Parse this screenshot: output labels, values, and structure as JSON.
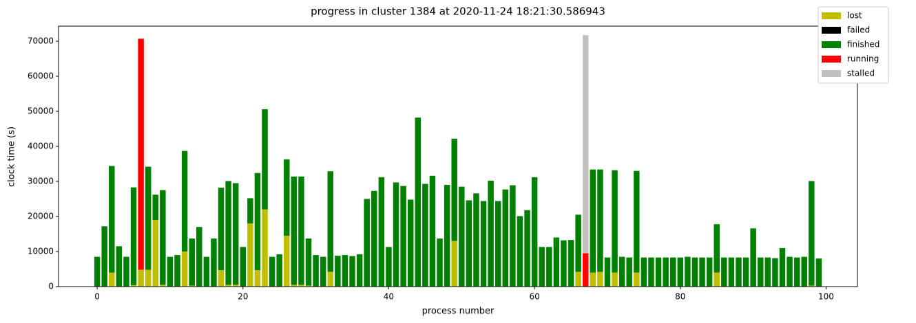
{
  "chart_data": {
    "type": "stacked_bar",
    "title": "progress in cluster 1384 at 2020-11-24 18:21:30.586943",
    "x_label": "process number",
    "y_label": "clock time (s)",
    "x": [
      0,
      1,
      2,
      3,
      4,
      5,
      6,
      7,
      8,
      9,
      10,
      11,
      12,
      13,
      14,
      15,
      16,
      17,
      18,
      19,
      20,
      21,
      22,
      23,
      24,
      25,
      26,
      27,
      28,
      29,
      30,
      31,
      32,
      33,
      34,
      35,
      36,
      37,
      38,
      39,
      40,
      41,
      42,
      43,
      44,
      45,
      46,
      47,
      48,
      49,
      50,
      51,
      52,
      53,
      54,
      55,
      56,
      57,
      58,
      59,
      60,
      61,
      62,
      63,
      64,
      65,
      66,
      67,
      68,
      69,
      70,
      71,
      72,
      73,
      74,
      75,
      76,
      77,
      78,
      79,
      80,
      81,
      82,
      83,
      84,
      85,
      86,
      87,
      88,
      89,
      90,
      91,
      92,
      93,
      94,
      95,
      96,
      97,
      98,
      99
    ],
    "series": [
      {
        "name": "lost",
        "color": "#bfbf00",
        "values": [
          0,
          0,
          4000,
          0,
          0,
          400,
          4800,
          4800,
          19000,
          500,
          0,
          0,
          10000,
          300,
          0,
          0,
          0,
          4700,
          500,
          500,
          0,
          18000,
          4700,
          22000,
          0,
          0,
          14500,
          500,
          500,
          300,
          0,
          0,
          4200,
          0,
          0,
          0,
          0,
          0,
          0,
          0,
          0,
          0,
          0,
          0,
          0,
          0,
          0,
          0,
          0,
          13000,
          0,
          0,
          0,
          0,
          0,
          0,
          0,
          0,
          0,
          0,
          0,
          0,
          0,
          0,
          0,
          0,
          4200,
          0,
          4000,
          4200,
          0,
          4000,
          0,
          0,
          4000,
          0,
          0,
          0,
          0,
          0,
          0,
          0,
          0,
          0,
          0,
          4000,
          0,
          0,
          0,
          0,
          0,
          0,
          0,
          0,
          0,
          0,
          0,
          0,
          300,
          0
        ]
      },
      {
        "name": "failed",
        "color": "#000000",
        "values": [
          0,
          0,
          0,
          0,
          0,
          0,
          0,
          0,
          0,
          0,
          0,
          0,
          0,
          0,
          0,
          0,
          0,
          0,
          0,
          0,
          0,
          0,
          0,
          0,
          0,
          0,
          0,
          0,
          0,
          0,
          0,
          0,
          0,
          0,
          0,
          0,
          0,
          0,
          0,
          0,
          0,
          0,
          0,
          0,
          0,
          0,
          0,
          0,
          0,
          0,
          0,
          0,
          0,
          0,
          0,
          0,
          0,
          0,
          0,
          0,
          0,
          0,
          0,
          0,
          0,
          0,
          0,
          0,
          0,
          0,
          0,
          0,
          0,
          0,
          0,
          0,
          0,
          0,
          0,
          0,
          0,
          0,
          0,
          0,
          0,
          0,
          0,
          0,
          0,
          0,
          0,
          0,
          0,
          0,
          0,
          0,
          0,
          0,
          0,
          0
        ]
      },
      {
        "name": "finished",
        "color": "#008000",
        "values": [
          8500,
          17200,
          30400,
          11500,
          8500,
          27900,
          0,
          29400,
          7200,
          27000,
          8500,
          9000,
          28700,
          13400,
          17000,
          8500,
          13700,
          23500,
          29600,
          29000,
          11300,
          7200,
          27700,
          28600,
          8500,
          9200,
          21800,
          30900,
          30900,
          13400,
          9000,
          8500,
          28700,
          8800,
          9000,
          8700,
          9200,
          25000,
          27300,
          31200,
          11300,
          29700,
          28700,
          24800,
          48200,
          29300,
          31600,
          13700,
          29000,
          29200,
          28500,
          24600,
          26600,
          24400,
          30200,
          24400,
          27700,
          28900,
          20100,
          21800,
          31200,
          11300,
          11300,
          14000,
          13200,
          13300,
          16300,
          0,
          29400,
          29200,
          8300,
          29200,
          8500,
          8300,
          29000,
          8300,
          8300,
          8300,
          8300,
          8300,
          8300,
          8500,
          8300,
          8300,
          8300,
          13800,
          8300,
          8300,
          8300,
          8300,
          16600,
          8300,
          8300,
          8100,
          11000,
          8500,
          8300,
          8500,
          29800,
          8000
        ]
      },
      {
        "name": "running",
        "color": "#ff0000",
        "values": [
          0,
          0,
          0,
          0,
          0,
          0,
          65900,
          0,
          0,
          0,
          0,
          0,
          0,
          0,
          0,
          0,
          0,
          0,
          0,
          0,
          0,
          0,
          0,
          0,
          0,
          0,
          0,
          0,
          0,
          0,
          0,
          0,
          0,
          0,
          0,
          0,
          0,
          0,
          0,
          0,
          0,
          0,
          0,
          0,
          0,
          0,
          0,
          0,
          0,
          0,
          0,
          0,
          0,
          0,
          0,
          0,
          0,
          0,
          0,
          0,
          0,
          0,
          0,
          0,
          0,
          0,
          0,
          9500,
          0,
          0,
          0,
          0,
          0,
          0,
          0,
          0,
          0,
          0,
          0,
          0,
          0,
          0,
          0,
          0,
          0,
          0,
          0,
          0,
          0,
          0,
          0,
          0,
          0,
          0,
          0,
          0,
          0,
          0,
          0,
          0
        ]
      },
      {
        "name": "stalled",
        "color": "#c0c0c0",
        "values": [
          0,
          0,
          0,
          0,
          0,
          0,
          0,
          0,
          0,
          0,
          0,
          0,
          0,
          0,
          0,
          0,
          0,
          0,
          0,
          0,
          0,
          0,
          0,
          0,
          0,
          0,
          0,
          0,
          0,
          0,
          0,
          0,
          0,
          0,
          0,
          0,
          0,
          0,
          0,
          0,
          0,
          0,
          0,
          0,
          0,
          0,
          0,
          0,
          0,
          0,
          0,
          0,
          0,
          0,
          0,
          0,
          0,
          0,
          0,
          0,
          0,
          0,
          0,
          0,
          0,
          0,
          0,
          62200,
          0,
          0,
          0,
          0,
          0,
          0,
          0,
          0,
          0,
          0,
          0,
          0,
          0,
          0,
          0,
          0,
          0,
          0,
          0,
          0,
          0,
          0,
          0,
          0,
          0,
          0,
          0,
          0,
          0,
          0,
          0,
          0
        ]
      }
    ],
    "xlim": [
      -5.3,
      104.3
    ],
    "xticks": [
      0,
      20,
      40,
      60,
      80,
      100
    ],
    "ylim": [
      0,
      74300
    ],
    "yticks": [
      0,
      10000,
      20000,
      30000,
      40000,
      50000,
      60000,
      70000
    ],
    "bar_width": 0.8,
    "legend": "upper right",
    "grid": false
  }
}
